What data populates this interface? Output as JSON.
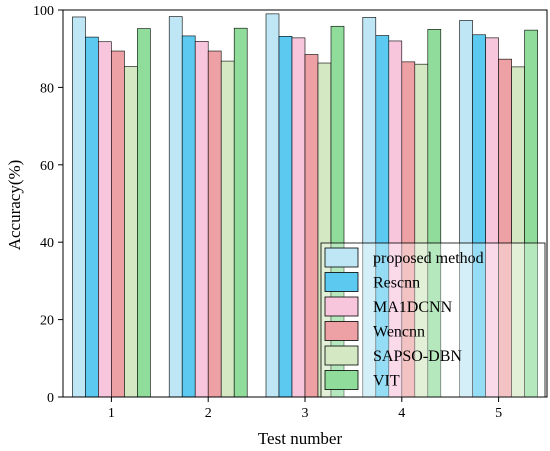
{
  "chart_data": {
    "type": "bar",
    "xlabel": "Test number",
    "ylabel": "Accuracy(%)",
    "ylim": [
      0,
      100
    ],
    "yticks": [
      0,
      20,
      40,
      60,
      80,
      100
    ],
    "categories": [
      "1",
      "2",
      "3",
      "4",
      "5"
    ],
    "legend_position": "bottom-right",
    "grid": false,
    "series": [
      {
        "name": "proposed method",
        "color": "#bfe6f5",
        "values": [
          98.2,
          98.3,
          99.0,
          98.1,
          97.3
        ]
      },
      {
        "name": "Rescnn",
        "color": "#5cc9f0",
        "values": [
          93.0,
          93.3,
          93.2,
          93.4,
          93.6
        ]
      },
      {
        "name": "MA1DCNN",
        "color": "#f7c6dd",
        "values": [
          91.8,
          91.9,
          92.8,
          92.0,
          92.8
        ]
      },
      {
        "name": "Wencnn",
        "color": "#eda1a4",
        "values": [
          89.4,
          89.4,
          88.5,
          86.6,
          87.3
        ]
      },
      {
        "name": "SAPSO-DBN",
        "color": "#d3e8c3",
        "values": [
          85.4,
          86.8,
          86.3,
          86.0,
          85.3
        ]
      },
      {
        "name": "VIT",
        "color": "#8fdc9b",
        "values": [
          95.2,
          95.3,
          95.8,
          95.0,
          94.8
        ]
      }
    ]
  }
}
